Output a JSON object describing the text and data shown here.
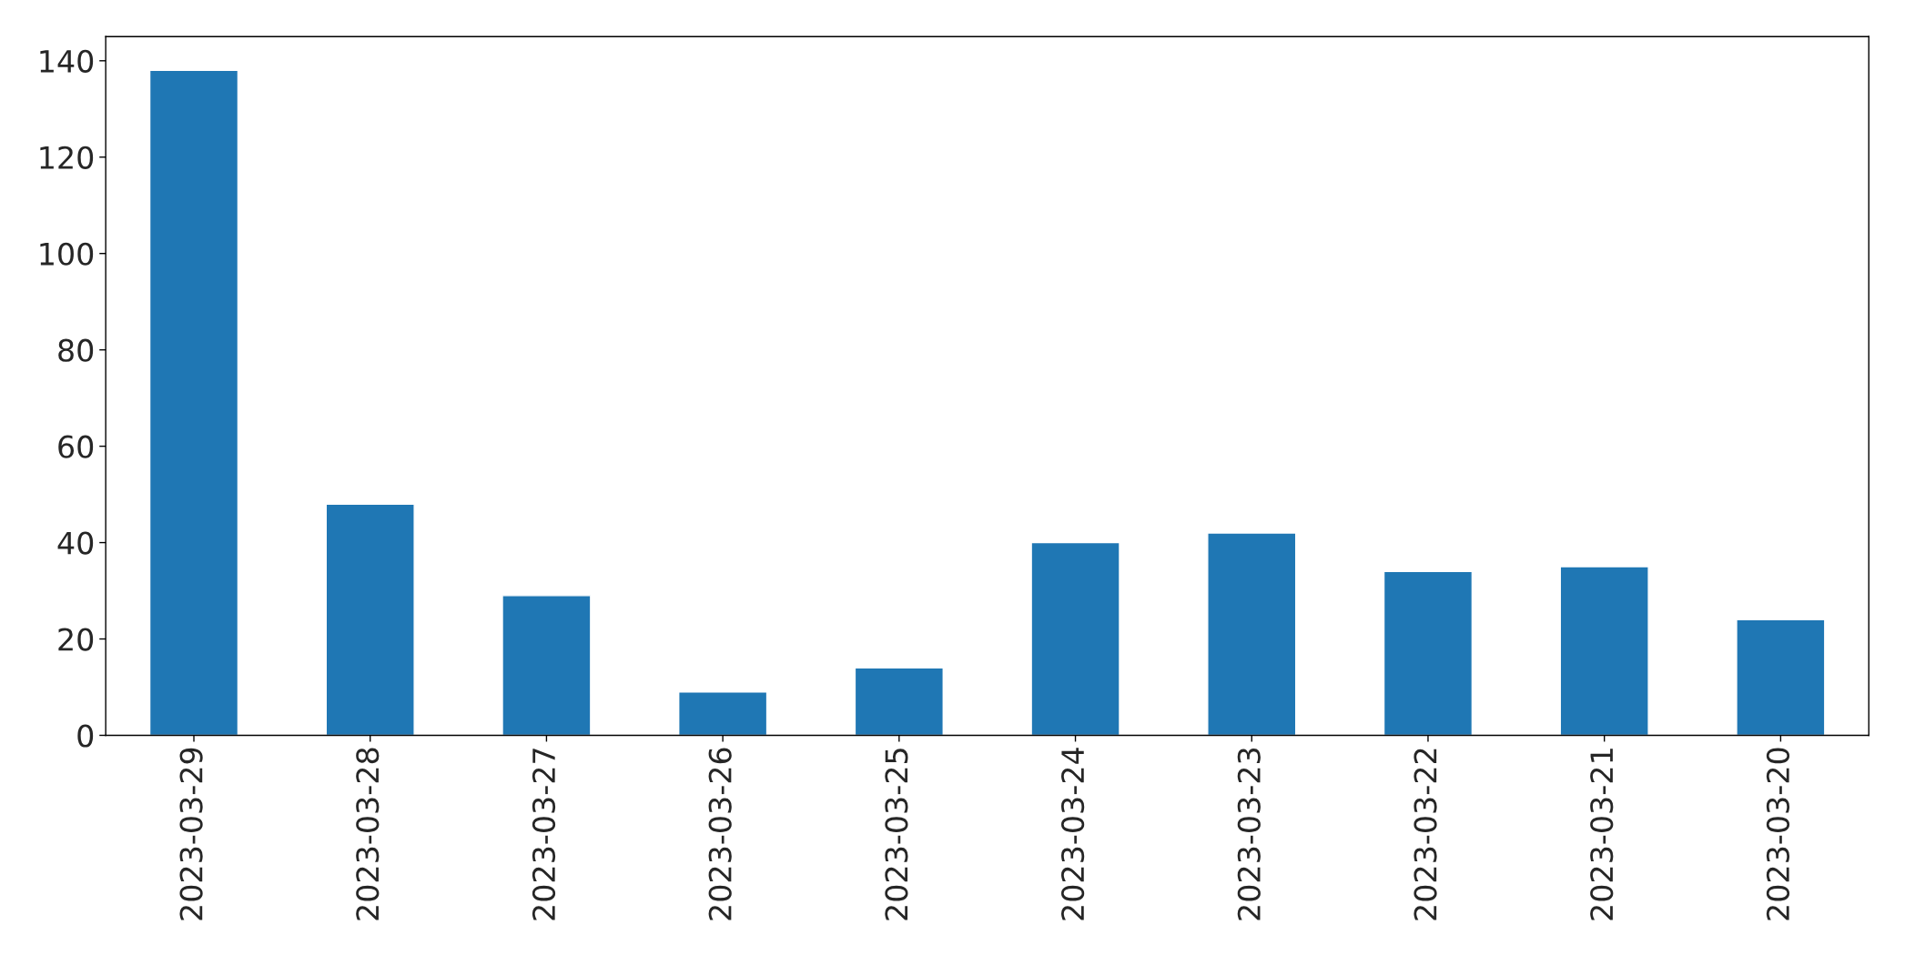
{
  "chart_data": {
    "type": "bar",
    "categories": [
      "2023-03-29",
      "2023-03-28",
      "2023-03-27",
      "2023-03-26",
      "2023-03-25",
      "2023-03-24",
      "2023-03-23",
      "2023-03-22",
      "2023-03-21",
      "2023-03-20"
    ],
    "values": [
      138,
      48,
      29,
      9,
      14,
      40,
      42,
      34,
      35,
      24
    ],
    "color": "#1f77b4",
    "ylim": [
      0,
      145
    ],
    "yticks": [
      0,
      20,
      40,
      60,
      80,
      100,
      120,
      140
    ],
    "grid": false,
    "legend": false
  }
}
